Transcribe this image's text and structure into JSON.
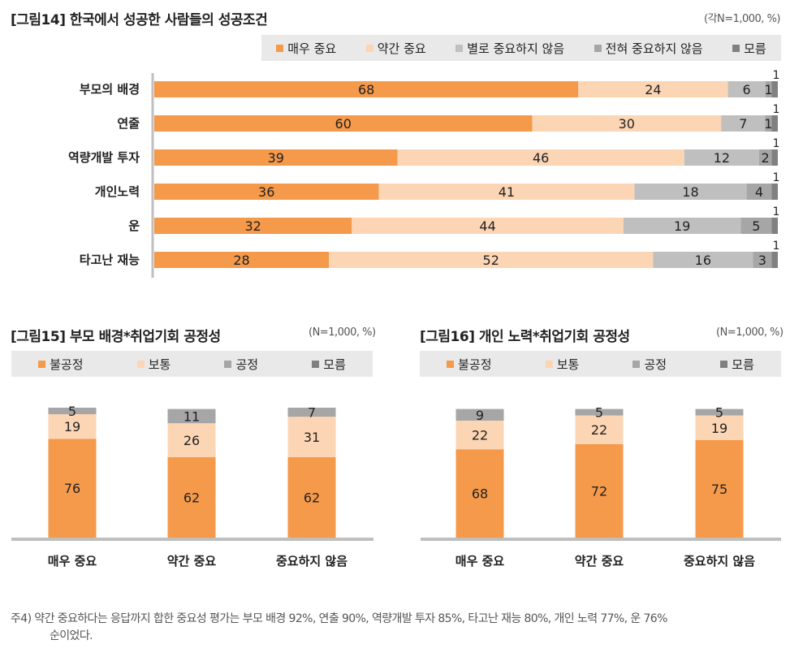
{
  "fig14": {
    "title": "[그림14] 한국에서 성공한 사람들의 성공조건",
    "note": "(각N=1,000, %)",
    "legend": [
      "매우 중요",
      "약간 중요",
      "별로 중요하지 않음",
      "전혀 중요하지 않음",
      "모름"
    ]
  },
  "fig15": {
    "title": "[그림15] 부모 배경*취업기회 공정성",
    "note": "(N=1,000, %)",
    "legend": [
      "불공정",
      "보통",
      "공정",
      "모름"
    ]
  },
  "fig16": {
    "title": "[그림16] 개인 노력*취업기회 공정성",
    "note": "(N=1,000, %)",
    "legend": [
      "불공정",
      "보통",
      "공정",
      "모름"
    ]
  },
  "footnote": {
    "line1": "주4)   약간 중요하다는 응답까지 합한 중요성 평가는 부모 배경 92%, 연출 90%, 역량개발 투자 85%, 타고난 재능 80%, 개인 노력 77%, 운 76%",
    "line2": "순이었다."
  },
  "colors": {
    "c1": "#f5994a",
    "c2": "#fcd5b4",
    "c3": "#bfbfbf",
    "c4": "#a6a6a6",
    "c5": "#808080",
    "axis": "#bfbfbf"
  },
  "chart_data": [
    {
      "type": "bar",
      "orientation": "horizontal",
      "stacked": true,
      "categories": [
        "부모의 배경",
        "연줄",
        "역량개발 투자",
        "개인노력",
        "운",
        "타고난 재능"
      ],
      "series": [
        {
          "name": "매우 중요",
          "values": [
            68,
            60,
            39,
            36,
            32,
            28
          ]
        },
        {
          "name": "약간 중요",
          "values": [
            24,
            30,
            46,
            41,
            44,
            52
          ]
        },
        {
          "name": "별로 중요하지 않음",
          "values": [
            6,
            7,
            12,
            18,
            19,
            16
          ]
        },
        {
          "name": "전혀 중요하지 않음",
          "values": [
            1,
            1,
            2,
            4,
            5,
            3
          ]
        },
        {
          "name": "모름",
          "values": [
            1,
            1,
            1,
            1,
            1,
            1
          ]
        }
      ]
    },
    {
      "type": "bar",
      "stacked": true,
      "categories": [
        "매우 중요",
        "약간 중요",
        "중요하지 않음"
      ],
      "series": [
        {
          "name": "불공정",
          "values": [
            76,
            62,
            62
          ]
        },
        {
          "name": "보통",
          "values": [
            19,
            26,
            31
          ]
        },
        {
          "name": "공정",
          "values": [
            5,
            11,
            7
          ]
        }
      ]
    },
    {
      "type": "bar",
      "stacked": true,
      "categories": [
        "매우 중요",
        "약간 중요",
        "중요하지 않음"
      ],
      "series": [
        {
          "name": "불공정",
          "values": [
            68,
            72,
            75
          ]
        },
        {
          "name": "보통",
          "values": [
            22,
            22,
            19
          ]
        },
        {
          "name": "공정",
          "values": [
            9,
            5,
            5
          ]
        }
      ]
    }
  ]
}
